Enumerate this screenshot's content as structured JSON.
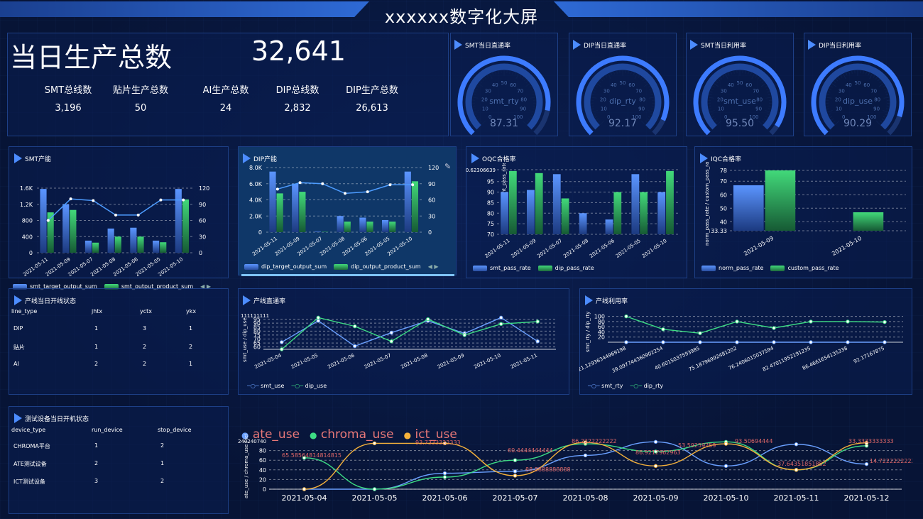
{
  "header": {
    "title": "xxxxxx数字化大屏"
  },
  "summary": {
    "label": "当日生产总数",
    "value": "32,641",
    "kpis": [
      {
        "label": "SMT总线数",
        "value": "3,196"
      },
      {
        "label": "贴片生产总数",
        "value": "50"
      },
      {
        "label": "AI生产总数",
        "value": "24"
      },
      {
        "label": "DIP总线数",
        "value": "2,832"
      },
      {
        "label": "DIP生产总数",
        "value": "26,613"
      }
    ]
  },
  "gauges": [
    {
      "title": "SMT当日直通率",
      "name": "smt_rty",
      "value": "87.31",
      "pct": 87.31
    },
    {
      "title": "DIP当日直通率",
      "name": "dip_rty",
      "value": "92.17",
      "pct": 92.17
    },
    {
      "title": "SMT当日利用率",
      "name": "smt_use",
      "value": "95.50",
      "pct": 95.5
    },
    {
      "title": "DIP当日利用率",
      "name": "dip_use",
      "value": "90.29",
      "pct": 90.29
    }
  ],
  "gauge_ticks": [
    "0",
    "10",
    "20",
    "30",
    "40",
    "50",
    "60",
    "70",
    "80",
    "90",
    "100"
  ],
  "smt_output": {
    "title": "SMT产能",
    "legend": [
      "smt_target_output_sum",
      "smt_output_product_sum"
    ],
    "yleft": [
      "0",
      "400",
      "800",
      "1.2K",
      "1.6K"
    ],
    "yright": [
      "0",
      "30",
      "60",
      "90",
      "120"
    ],
    "x_labels": [
      "2021-05-11",
      "2021-05-09",
      "2021-05-07",
      "2021-05-08",
      "2021-05-06",
      "2021-05-05",
      "2021-05-10"
    ]
  },
  "dip_output": {
    "title": "DIP产能",
    "legend": [
      "dip_target_output_sum",
      "dip_output_product_sum"
    ],
    "yleft": [
      "0",
      "2.0K",
      "4.0K",
      "6.0K",
      "8.0K"
    ],
    "yright": [
      "0",
      "30",
      "60",
      "90",
      "120"
    ],
    "x_labels": [
      "2021-05-11",
      "2021-05-09",
      "2021-05-07",
      "2021-05-08",
      "2021-05-06",
      "2021-05-05",
      "2021-05-10"
    ]
  },
  "oqc": {
    "title": "OQC合格率",
    "ylabel": "smt_pass_rate / dip_pass_rate",
    "ytop": "100.62306639",
    "yticks": [
      "70",
      "75",
      "80",
      "85",
      "90",
      "95"
    ],
    "x_labels": [
      "2021-05-11",
      "2021-05-09",
      "2021-05-07",
      "2021-05-08",
      "2021-05-06",
      "2021-05-05",
      "2021-05-10"
    ],
    "legend": [
      "smt_pass_rate",
      "dip_pass_rate"
    ]
  },
  "iqc": {
    "title": "IQC合格率",
    "ylabel": "norm_pass_rate / custom_pass_ra",
    "yticks": [
      "33.33",
      "40",
      "50",
      "60",
      "70",
      "78"
    ],
    "x_labels": [
      "2021-05-09",
      "2021-05-10"
    ],
    "legend": [
      "norm_pass_rate",
      "custom_pass_rate"
    ]
  },
  "line_status": {
    "title": "产线当日开线状态",
    "headers": [
      "line_type",
      "jhtx",
      "yctx",
      "ykx"
    ],
    "rows": [
      [
        "DIP",
        "1",
        "3",
        "1"
      ],
      [
        "贴片",
        "1",
        "2",
        "2"
      ],
      [
        "AI",
        "2",
        "2",
        "1"
      ]
    ]
  },
  "rty": {
    "title": "产线直通率",
    "ylabel": "smt_use / dip_use",
    "ytop": "111111111",
    "yticks": [
      "60",
      "65",
      "70",
      "75",
      "80",
      "85",
      "90",
      "95"
    ],
    "x_labels": [
      "2021-05-04",
      "2021-05-05",
      "2021-05-06",
      "2021-05-07",
      "2021-05-08",
      "2021-05-09",
      "2021-05-10",
      "2021-05-11"
    ],
    "legend": [
      "smt_use",
      "dip_use"
    ]
  },
  "util": {
    "title": "产线利用率",
    "ylabel": "smt_rty / dip_rty",
    "yticks": [
      "20",
      "40",
      "60",
      "80",
      "100"
    ],
    "x_labels": [
      "121.12936344969198",
      "39.097744360902254",
      "40.6015037593985",
      "75.18796992481202",
      "76.2406015037594",
      "82.47011952191235",
      "86.4661654135338",
      "92.17167875"
    ],
    "legend": [
      "smt_rty",
      "dip_rty"
    ]
  },
  "device_status": {
    "title": "测试设备当日开机状态",
    "headers": [
      "device_type",
      "run_device",
      "stop_device"
    ],
    "rows": [
      [
        "CHROMA平台",
        "1",
        "2"
      ],
      [
        "ATE测试设备",
        "2",
        "1"
      ],
      [
        "ICT测试设备",
        "3",
        "2"
      ]
    ]
  },
  "bottom": {
    "ylabel": "ate_use / chroma_use / ict_use",
    "ytop": "240240740",
    "legend": [
      "ate_use",
      "chroma_use",
      "ict_use"
    ],
    "x_labels": [
      "2021-05-04",
      "2021-05-05",
      "2021-05-06",
      "2021-05-07",
      "2021-05-08",
      "2021-05-09",
      "2021-05-10",
      "2021-05-11",
      "2021-05-12"
    ],
    "point_labels": [
      "65.58564814814815",
      "93.7333333333",
      "60.4444444444",
      "88.8888888888",
      "86.2222222222",
      "86.9212962963",
      "53.59259259",
      "93.50694444",
      "37.64351851852",
      "33.3333333333",
      "14.72222222222"
    ]
  },
  "chart_data": [
    {
      "type": "bar",
      "title": "SMT产能",
      "categories": [
        "2021-05-11",
        "2021-05-09",
        "2021-05-07",
        "2021-05-08",
        "2021-05-06",
        "2021-05-05",
        "2021-05-10"
      ],
      "series": [
        {
          "name": "smt_target_output_sum",
          "values": [
            1580,
            1200,
            300,
            600,
            620,
            300,
            1580
          ]
        },
        {
          "name": "smt_output_product_sum",
          "values": [
            1000,
            1060,
            250,
            400,
            400,
            260,
            1320
          ]
        }
      ],
      "line": [
        60,
        100,
        97,
        70,
        70,
        98,
        98
      ]
    },
    {
      "type": "bar",
      "title": "DIP产能",
      "categories": [
        "2021-05-11",
        "2021-05-09",
        "2021-05-07",
        "2021-05-08",
        "2021-05-06",
        "2021-05-05",
        "2021-05-10"
      ],
      "series": [
        {
          "name": "dip_target_output_sum",
          "values": [
            7500,
            6000,
            100,
            2000,
            1800,
            1500,
            7500
          ]
        },
        {
          "name": "dip_output_product_sum",
          "values": [
            4800,
            5000,
            50,
            1300,
            1300,
            1300,
            6300
          ]
        }
      ],
      "line": [
        80,
        92,
        90,
        72,
        75,
        88,
        88
      ]
    },
    {
      "type": "bar",
      "title": "OQC合格率",
      "categories": [
        "2021-05-11",
        "2021-05-09",
        "2021-05-07",
        "2021-05-08",
        "2021-05-06",
        "2021-05-05",
        "2021-05-10"
      ],
      "series": [
        {
          "name": "smt_pass_rate",
          "values": [
            90,
            91,
            98.5,
            80,
            77,
            98.5,
            90
          ]
        },
        {
          "name": "dip_pass_rate",
          "values": [
            100,
            99,
            87,
            70,
            90,
            90,
            100
          ]
        }
      ],
      "ylim": [
        70,
        100.62
      ]
    },
    {
      "type": "bar",
      "title": "IQC合格率",
      "categories": [
        "2021-05-09",
        "2021-05-10"
      ],
      "series": [
        {
          "name": "norm_pass_rate",
          "values": [
            67,
            33.33
          ]
        },
        {
          "name": "custom_pass_rate",
          "values": [
            78,
            47
          ]
        }
      ],
      "ylim": [
        33.33,
        78
      ]
    },
    {
      "type": "line",
      "title": "产线直通率",
      "categories": [
        "2021-05-04",
        "2021-05-05",
        "2021-05-06",
        "2021-05-07",
        "2021-05-08",
        "2021-05-09",
        "2021-05-10",
        "2021-05-11"
      ],
      "series": [
        {
          "name": "smt_use",
          "values": [
            66,
            93,
            61,
            78,
            93,
            77,
            97,
            67
          ]
        },
        {
          "name": "dip_use",
          "values": [
            57,
            97,
            86,
            67,
            95,
            75,
            89,
            92
          ]
        }
      ],
      "ylim": [
        55,
        100
      ]
    },
    {
      "type": "line",
      "title": "产线利用率",
      "series": [
        {
          "name": "smt_rty",
          "values": [
            0,
            0,
            0,
            0,
            0,
            0,
            0,
            0
          ]
        },
        {
          "name": "dip_rty",
          "values": [
            100,
            50,
            35,
            80,
            55,
            80,
            80,
            78
          ]
        }
      ],
      "ylim": [
        0,
        120
      ]
    },
    {
      "type": "line",
      "title": "",
      "categories": [
        "2021-05-04",
        "2021-05-05",
        "2021-05-06",
        "2021-05-07",
        "2021-05-08",
        "2021-05-09",
        "2021-05-10",
        "2021-05-11",
        "2021-05-12"
      ],
      "series": [
        {
          "name": "ate_use",
          "values": [
            0,
            0,
            33,
            37,
            70,
            98,
            48,
            93,
            52
          ]
        },
        {
          "name": "chroma_use",
          "values": [
            65,
            0,
            25,
            60,
            94,
            78,
            98,
            40,
            90
          ]
        },
        {
          "name": "ict_use",
          "values": [
            0,
            95,
            95,
            28,
            97,
            48,
            94,
            40,
            96
          ]
        }
      ],
      "ylim": [
        0,
        100
      ]
    }
  ]
}
